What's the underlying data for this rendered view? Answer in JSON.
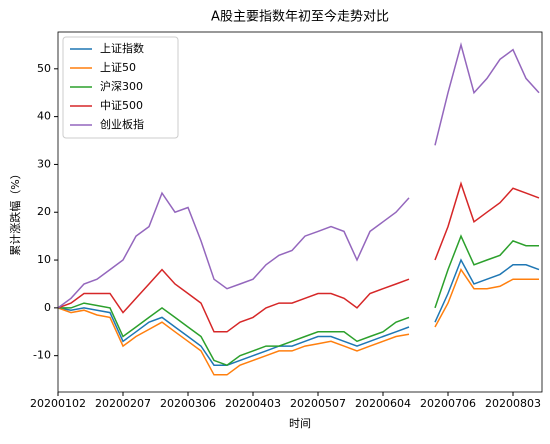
{
  "chart_data": {
    "type": "line",
    "title": "A股主要指数年初至今走势对比",
    "xlabel": "时间",
    "ylabel": "累计涨跌幅（%）",
    "categories": [
      "20200102",
      null,
      null,
      null,
      null,
      "20200207",
      null,
      null,
      null,
      null,
      "20200306",
      null,
      null,
      null,
      null,
      "20200403",
      null,
      null,
      null,
      null,
      "20200507",
      null,
      null,
      null,
      null,
      "20200604",
      null,
      null,
      null,
      null,
      "20200706",
      null,
      null,
      null,
      null,
      "20200803",
      null,
      null
    ],
    "series": [
      {
        "name": "上证指数",
        "color": "#1f77b4",
        "values": [
          0,
          -0.5,
          0,
          -0.5,
          -1,
          -7,
          -5,
          -3,
          -2,
          -4,
          -6,
          -8,
          -12,
          -12,
          -11,
          -10,
          -9,
          -8,
          -8,
          -7,
          -6,
          -6,
          -7,
          -8,
          -7,
          -6,
          -5,
          -4,
          null,
          -3,
          3,
          10,
          5,
          6,
          7,
          9,
          9,
          8
        ]
      },
      {
        "name": "上证50",
        "color": "#ff7f0e",
        "values": [
          0,
          -1,
          -0.5,
          -1.5,
          -2,
          -8,
          -6,
          -4.5,
          -3,
          -5,
          -7,
          -9,
          -14,
          -14,
          -12,
          -11,
          -10,
          -9,
          -9,
          -8,
          -7.5,
          -7,
          -8,
          -9,
          -8,
          -7,
          -6,
          -5.5,
          null,
          -4,
          1,
          8,
          4,
          4,
          4.5,
          6,
          6,
          6
        ]
      },
      {
        "name": "沪深300",
        "color": "#2ca02c",
        "values": [
          0,
          0,
          1,
          0.5,
          0,
          -6,
          -4,
          -2,
          0,
          -2,
          -4,
          -6,
          -11,
          -12,
          -10,
          -9,
          -8,
          -8,
          -7,
          -6,
          -5,
          -5,
          -5,
          -7,
          -6,
          -5,
          -3,
          -2,
          null,
          0,
          8,
          15,
          9,
          10,
          11,
          14,
          13,
          13
        ]
      },
      {
        "name": "中证500",
        "color": "#d62728",
        "values": [
          0,
          1,
          3,
          3,
          3,
          -1,
          2,
          5,
          8,
          5,
          3,
          1,
          -5,
          -5,
          -3,
          -2,
          0,
          1,
          1,
          2,
          3,
          3,
          2,
          0,
          3,
          4,
          5,
          6,
          null,
          10,
          17,
          26,
          18,
          20,
          22,
          25,
          24,
          23
        ]
      },
      {
        "name": "创业板指",
        "color": "#9467bd",
        "values": [
          0,
          2,
          5,
          6,
          8,
          10,
          15,
          17,
          24,
          20,
          21,
          14,
          6,
          4,
          5,
          6,
          9,
          11,
          12,
          15,
          16,
          17,
          16,
          10,
          16,
          18,
          20,
          23,
          null,
          34,
          45,
          55,
          45,
          48,
          52,
          54,
          48,
          45
        ]
      }
    ],
    "ylim": [
      -17.6,
      57.7
    ],
    "yticks": [
      -10,
      0,
      10,
      20,
      30,
      40,
      50
    ],
    "legend": "upper left"
  }
}
